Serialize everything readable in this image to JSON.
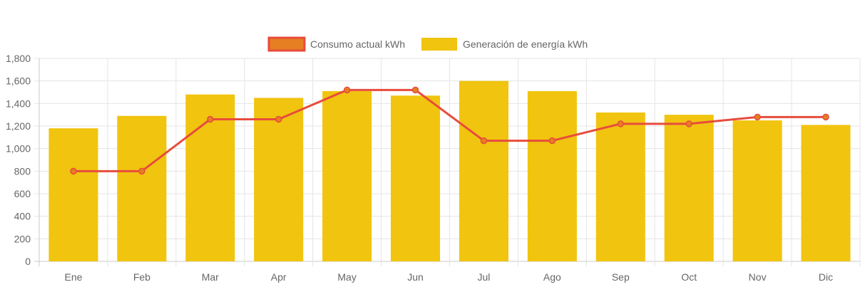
{
  "chart_data": {
    "type": "bar",
    "categories": [
      "Ene",
      "Feb",
      "Mar",
      "Apr",
      "May",
      "Jun",
      "Jul",
      "Ago",
      "Sep",
      "Oct",
      "Nov",
      "Dic"
    ],
    "series": [
      {
        "name": "Consumo actual kWh",
        "type": "line",
        "values": [
          800,
          800,
          1260,
          1260,
          1520,
          1520,
          1070,
          1070,
          1220,
          1220,
          1280,
          1280
        ],
        "color": "#e74c3c",
        "point_color": "#e67e22"
      },
      {
        "name": "Generación de energía kWh",
        "type": "bar",
        "values": [
          1180,
          1290,
          1480,
          1450,
          1510,
          1470,
          1600,
          1510,
          1320,
          1300,
          1250,
          1210
        ],
        "color": "#f1c40f"
      }
    ],
    "ylim": [
      0,
      1800
    ],
    "yticks": [
      "0",
      "200",
      "400",
      "600",
      "800",
      "1,000",
      "1,200",
      "1,400",
      "1,600",
      "1,800"
    ],
    "grid": true,
    "legend_position": "top-center"
  }
}
